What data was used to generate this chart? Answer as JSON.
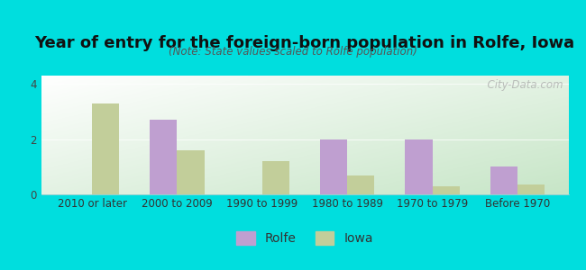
{
  "title": "Year of entry for the foreign-born population in Rolfe, Iowa",
  "subtitle": "(Note: State values scaled to Rolfe population)",
  "categories": [
    "2010 or later",
    "2000 to 2009",
    "1990 to 1999",
    "1980 to 1989",
    "1970 to 1979",
    "Before 1970"
  ],
  "rolfe_values": [
    0,
    2.7,
    0,
    2.0,
    2.0,
    1.0
  ],
  "iowa_values": [
    3.3,
    1.6,
    1.2,
    0.7,
    0.3,
    0.35
  ],
  "rolfe_color": "#bf9fd0",
  "iowa_color": "#c2ce9a",
  "background_color": "#00dede",
  "ylim": [
    0,
    4.3
  ],
  "yticks": [
    0,
    2,
    4
  ],
  "bar_width": 0.32,
  "title_fontsize": 13,
  "subtitle_fontsize": 8.5,
  "tick_fontsize": 8.5,
  "legend_fontsize": 10,
  "watermark": "  City-Data.com"
}
